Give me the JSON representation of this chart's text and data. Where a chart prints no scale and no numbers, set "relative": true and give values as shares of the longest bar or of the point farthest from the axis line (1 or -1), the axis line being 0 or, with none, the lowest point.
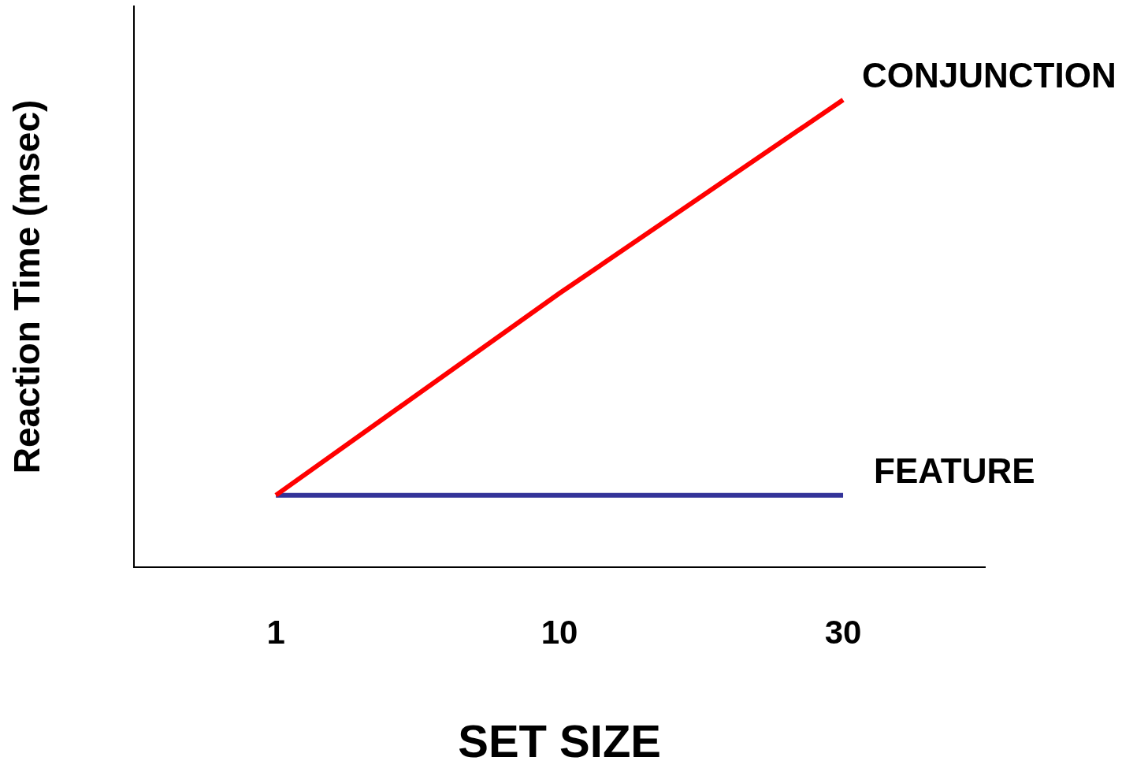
{
  "chart_data": {
    "type": "line",
    "relative": true,
    "xlabel": "SET SIZE",
    "ylabel": "Reaction Time (msec)",
    "categories": [
      "1",
      "10",
      "30"
    ],
    "legend": false,
    "grid": false,
    "marker": "none",
    "series": [
      {
        "name": "CONJUNCTION",
        "color": "#ff0000",
        "values": [
          0.154,
          0.586,
          1
        ]
      },
      {
        "name": "FEATURE",
        "color": "#333399",
        "values": [
          0.154,
          0.154,
          0.154
        ]
      }
    ]
  }
}
